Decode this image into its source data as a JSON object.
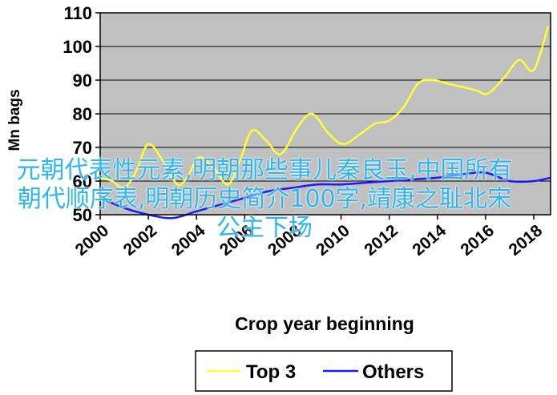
{
  "chart_data": {
    "type": "line",
    "ylabel": "Mn bags",
    "xlabel": "Crop year beginning",
    "ylim": [
      50,
      110
    ],
    "xlim": [
      2000,
      2018.7
    ],
    "yticks": [
      50,
      60,
      70,
      80,
      90,
      100,
      110
    ],
    "xticks": [
      2000,
      2002,
      2004,
      2006,
      2008,
      2010,
      2012,
      2014,
      2016,
      2018
    ],
    "grid": "horizontal",
    "legend_position": "bottom",
    "colors": {
      "plot_bg": "#c0c0c0",
      "top3": "#ffff33",
      "others": "#1a1aff"
    },
    "series": [
      {
        "name": "Top 3",
        "x": [
          2000,
          2000.5,
          2001,
          2001.5,
          2002,
          2002.6,
          2003.2,
          2003.6,
          2004.1,
          2004.7,
          2005.3,
          2005.8,
          2006.3,
          2006.9,
          2007.5,
          2008.2,
          2008.8,
          2009.5,
          2010.1,
          2010.8,
          2011.4,
          2012,
          2012.6,
          2013.2,
          2013.8,
          2014.4,
          2015,
          2015.6,
          2016.1,
          2016.8,
          2017.4,
          2018,
          2018.6
        ],
        "values": [
          61,
          60,
          58,
          63,
          71,
          66,
          59,
          61,
          67,
          64,
          59,
          66,
          75,
          72,
          68,
          76,
          80,
          74,
          71,
          74,
          77,
          78,
          82,
          89,
          90,
          89,
          88,
          87,
          86,
          91,
          96,
          93,
          106
        ]
      },
      {
        "name": "Others",
        "x": [
          2000,
          2001,
          2002,
          2003,
          2004,
          2005,
          2006,
          2007,
          2008,
          2009,
          2010,
          2011,
          2012,
          2013,
          2014,
          2015,
          2016,
          2017,
          2018,
          2018.7
        ],
        "values": [
          55,
          52,
          50,
          49,
          51,
          53,
          55,
          57,
          58,
          59,
          59,
          59.5,
          60,
          60.5,
          61,
          62,
          62.5,
          60,
          60,
          61
        ]
      }
    ]
  },
  "overlay_text": "元朝代表性元素,明朝那些事儿秦良玉,中国所有朝代顺序表,明朝历史简介100字,靖康之耻北宋公主下场"
}
